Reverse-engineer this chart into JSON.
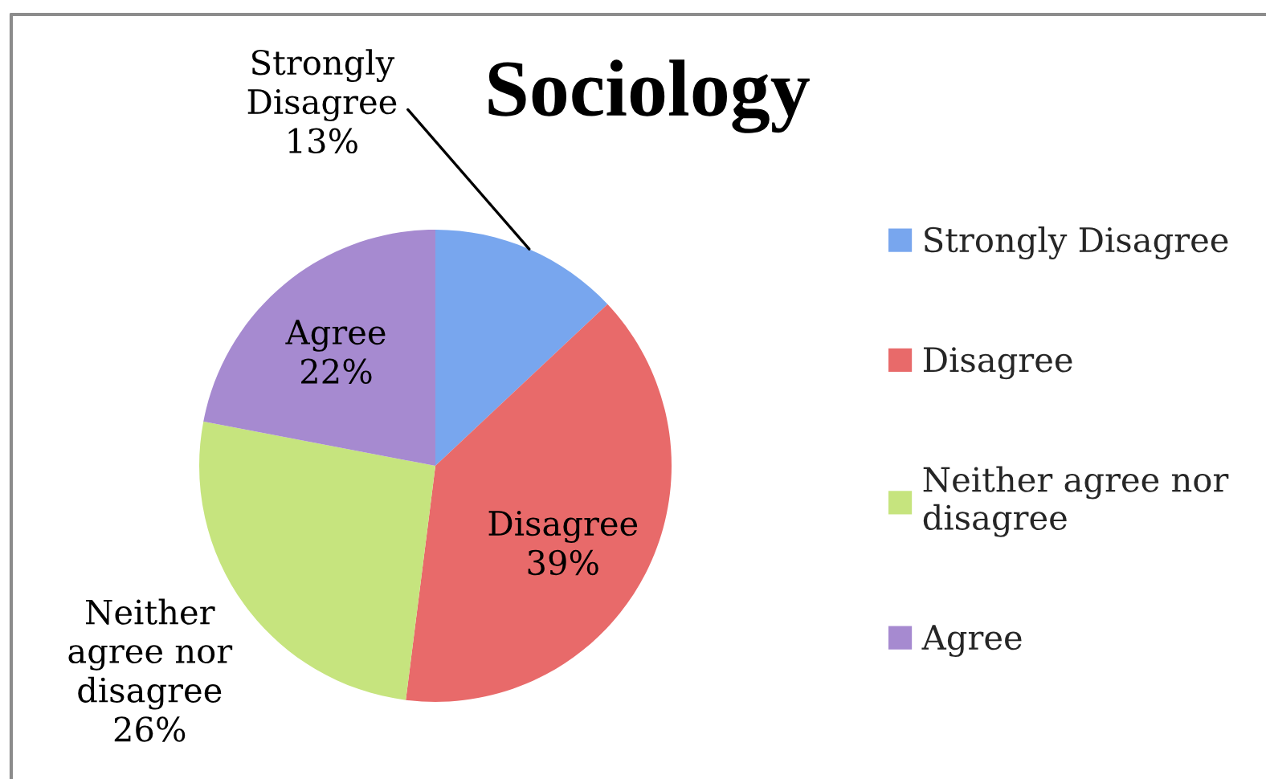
{
  "chart_data": {
    "type": "pie",
    "title": "Sociology",
    "categories": [
      "Strongly Disagree",
      "Disagree",
      "Neither agree nor disagree",
      "Agree"
    ],
    "values": [
      13,
      39,
      26,
      22
    ],
    "value_labels": [
      "13%",
      "39%",
      "26%",
      "22%"
    ],
    "colors": [
      "#78a6ee",
      "#e86a6a",
      "#c6e47e",
      "#a68ad0"
    ],
    "legend": "right"
  }
}
